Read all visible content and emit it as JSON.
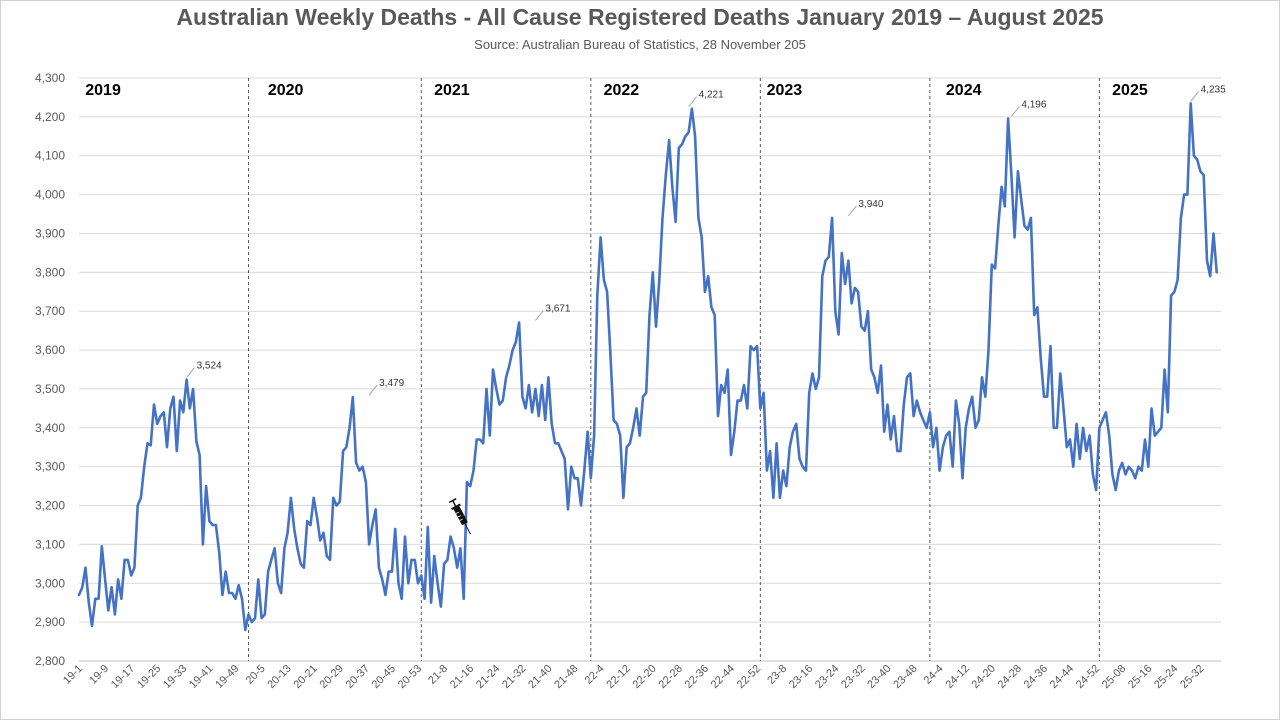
{
  "title": "Australian Weekly Deaths - All Cause Registered Deaths January 2019 – August 2025",
  "subtitle": "Source: Australian Bureau of Statistics, 28 November 205",
  "chart_data": {
    "type": "line",
    "title": "Australian Weekly Deaths - All Cause Registered Deaths January 2019 – August 2025",
    "subtitle": "Source: Australian Bureau of Statistics, 28 November 205",
    "xlabel": "",
    "ylabel": "",
    "ylim": [
      2800,
      4300
    ],
    "y_ticks": [
      2800,
      2900,
      3000,
      3100,
      3200,
      3300,
      3400,
      3500,
      3600,
      3700,
      3800,
      3900,
      4000,
      4100,
      4200,
      4300
    ],
    "y_tick_labels": [
      "2,800",
      "2,900",
      "3,000",
      "3,100",
      "3,200",
      "3,300",
      "3,400",
      "3,500",
      "3,600",
      "3,700",
      "3,800",
      "3,900",
      "4,000",
      "4,100",
      "4,200",
      "4,300"
    ],
    "x_ticks": [
      {
        "week": 0,
        "label": "19-1"
      },
      {
        "week": 8,
        "label": "19-9"
      },
      {
        "week": 16,
        "label": "19-17"
      },
      {
        "week": 24,
        "label": "19-25"
      },
      {
        "week": 32,
        "label": "19-33"
      },
      {
        "week": 40,
        "label": "19-41"
      },
      {
        "week": 48,
        "label": "19-49"
      },
      {
        "week": 56,
        "label": "20-5"
      },
      {
        "week": 64,
        "label": "20-13"
      },
      {
        "week": 72,
        "label": "20-21"
      },
      {
        "week": 80,
        "label": "20-29"
      },
      {
        "week": 88,
        "label": "20-37"
      },
      {
        "week": 96,
        "label": "20-45"
      },
      {
        "week": 104,
        "label": "20-53"
      },
      {
        "week": 112,
        "label": "21-8"
      },
      {
        "week": 120,
        "label": "21-16"
      },
      {
        "week": 128,
        "label": "21-24"
      },
      {
        "week": 136,
        "label": "21-32"
      },
      {
        "week": 144,
        "label": "21-40"
      },
      {
        "week": 152,
        "label": "21-48"
      },
      {
        "week": 160,
        "label": "22-4"
      },
      {
        "week": 168,
        "label": "22-12"
      },
      {
        "week": 176,
        "label": "22-20"
      },
      {
        "week": 184,
        "label": "22-28"
      },
      {
        "week": 192,
        "label": "22-36"
      },
      {
        "week": 200,
        "label": "22-44"
      },
      {
        "week": 208,
        "label": "22-52"
      },
      {
        "week": 216,
        "label": "23-8"
      },
      {
        "week": 224,
        "label": "23-16"
      },
      {
        "week": 232,
        "label": "23-24"
      },
      {
        "week": 240,
        "label": "23-32"
      },
      {
        "week": 248,
        "label": "23-40"
      },
      {
        "week": 256,
        "label": "23-48"
      },
      {
        "week": 264,
        "label": "24-4"
      },
      {
        "week": 272,
        "label": "24-12"
      },
      {
        "week": 280,
        "label": "24-20"
      },
      {
        "week": 288,
        "label": "24-28"
      },
      {
        "week": 296,
        "label": "24-36"
      },
      {
        "week": 304,
        "label": "24-44"
      },
      {
        "week": 312,
        "label": "24-52"
      },
      {
        "week": 320,
        "label": "25-08"
      },
      {
        "week": 328,
        "label": "25-16"
      },
      {
        "week": 336,
        "label": "25-24"
      },
      {
        "week": 344,
        "label": "25-32"
      }
    ],
    "year_dividers": [
      52,
      105,
      157,
      209,
      261,
      313
    ],
    "years": [
      {
        "label": "2019",
        "week": 1
      },
      {
        "label": "2020",
        "week": 57
      },
      {
        "label": "2021",
        "week": 108
      },
      {
        "label": "2022",
        "week": 160
      },
      {
        "label": "2023",
        "week": 210
      },
      {
        "label": "2024",
        "week": 265
      },
      {
        "label": "2025",
        "week": 316
      }
    ],
    "annotations": [
      {
        "label": "3,524",
        "week": 33,
        "value": 3524
      },
      {
        "label": "3,479",
        "week": 89,
        "value": 3479
      },
      {
        "label": "3,671",
        "week": 140,
        "value": 3671
      },
      {
        "label": "4,221",
        "week": 187,
        "value": 4221
      },
      {
        "label": "3,940",
        "week": 236,
        "value": 3940
      },
      {
        "label": "4,196",
        "week": 286,
        "value": 4196
      },
      {
        "label": "4,235",
        "week": 341,
        "value": 4235
      }
    ],
    "series": [
      {
        "name": "Weekly deaths",
        "color": "#4472c4",
        "start_week": 0,
        "values": [
          2970,
          2990,
          3040,
          2950,
          2890,
          2960,
          2960,
          3095,
          3010,
          2930,
          2990,
          2920,
          3010,
          2960,
          3060,
          3060,
          3020,
          3040,
          3200,
          3220,
          3300,
          3360,
          3355,
          3460,
          3410,
          3430,
          3440,
          3350,
          3450,
          3480,
          3340,
          3470,
          3440,
          3524,
          3450,
          3500,
          3365,
          3330,
          3100,
          3250,
          3160,
          3150,
          3150,
          3080,
          2970,
          3030,
          2975,
          2975,
          2960,
          2995,
          2960,
          2880,
          2920,
          2900,
          2910,
          3010,
          2910,
          2920,
          3030,
          3060,
          3090,
          3000,
          2975,
          3090,
          3130,
          3220,
          3140,
          3090,
          3050,
          3040,
          3160,
          3150,
          3220,
          3170,
          3110,
          3130,
          3070,
          3060,
          3220,
          3200,
          3210,
          3340,
          3350,
          3400,
          3479,
          3310,
          3290,
          3300,
          3260,
          3100,
          3150,
          3190,
          3040,
          3010,
          2970,
          3030,
          3030,
          3140,
          3000,
          2960,
          3120,
          3000,
          3060,
          3060,
          3000,
          3020,
          2960,
          3145,
          2950,
          3070,
          3000,
          2940,
          3050,
          3060,
          3120,
          3090,
          3040,
          3090,
          2960,
          3260,
          3250,
          3290,
          3370,
          3370,
          3360,
          3500,
          3380,
          3550,
          3500,
          3460,
          3470,
          3530,
          3560,
          3600,
          3620,
          3671,
          3480,
          3450,
          3510,
          3440,
          3500,
          3430,
          3510,
          3420,
          3530,
          3410,
          3360,
          3360,
          3340,
          3320,
          3190,
          3300,
          3270,
          3270,
          3200,
          3290,
          3390,
          3270,
          3380,
          3740,
          3890,
          3780,
          3750,
          3590,
          3420,
          3410,
          3380,
          3220,
          3350,
          3360,
          3400,
          3450,
          3380,
          3480,
          3490,
          3690,
          3800,
          3660,
          3780,
          3940,
          4050,
          4140,
          4020,
          3930,
          4120,
          4130,
          4150,
          4160,
          4221,
          4150,
          3940,
          3890,
          3750,
          3790,
          3710,
          3690,
          3430,
          3510,
          3490,
          3550,
          3330,
          3390,
          3470,
          3470,
          3510,
          3450,
          3610,
          3600,
          3610,
          3450,
          3490,
          3290,
          3340,
          3220,
          3360,
          3220,
          3290,
          3250,
          3350,
          3390,
          3410,
          3320,
          3300,
          3290,
          3490,
          3540,
          3500,
          3530,
          3790,
          3830,
          3840,
          3940,
          3700,
          3640,
          3850,
          3770,
          3830,
          3720,
          3760,
          3750,
          3660,
          3650,
          3700,
          3550,
          3530,
          3490,
          3560,
          3390,
          3460,
          3370,
          3430,
          3340,
          3340,
          3460,
          3530,
          3540,
          3430,
          3470,
          3440,
          3420,
          3400,
          3440,
          3350,
          3400,
          3290,
          3350,
          3380,
          3390,
          3300,
          3470,
          3410,
          3270,
          3400,
          3450,
          3480,
          3400,
          3420,
          3530,
          3480,
          3600,
          3820,
          3810,
          3920,
          4020,
          3970,
          4196,
          4050,
          3890,
          4060,
          3990,
          3920,
          3910,
          3940,
          3690,
          3710,
          3580,
          3480,
          3480,
          3610,
          3400,
          3400,
          3540,
          3450,
          3350,
          3370,
          3300,
          3410,
          3320,
          3400,
          3340,
          3380,
          3280,
          3240,
          3400,
          3420,
          3440,
          3380,
          3280,
          3240,
          3290,
          3310,
          3280,
          3300,
          3290,
          3270,
          3300,
          3290,
          3370,
          3300,
          3450,
          3380,
          3390,
          3400,
          3550,
          3440,
          3740,
          3750,
          3780,
          3940,
          4000,
          4000,
          4235,
          4100,
          4090,
          4060,
          4050,
          3830,
          3790,
          3900,
          3800
        ]
      }
    ]
  }
}
